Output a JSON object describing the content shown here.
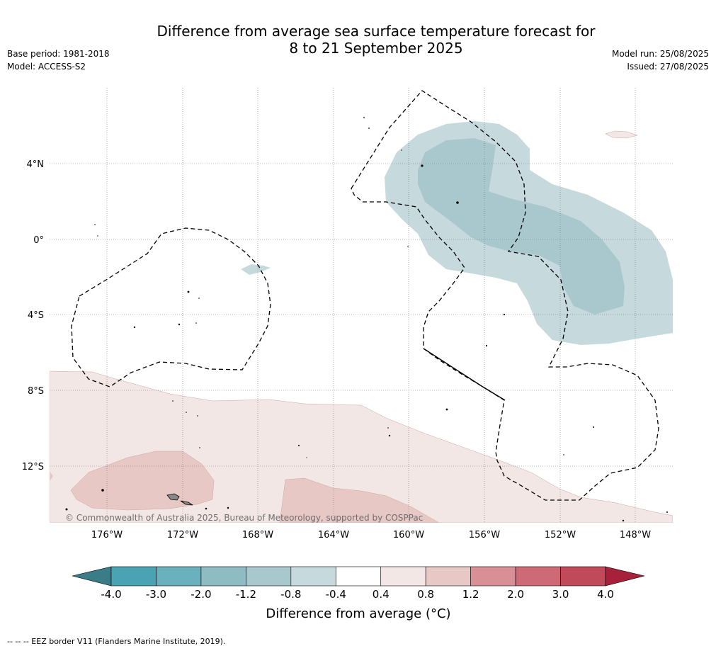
{
  "title_line1": "Difference from average sea surface temperature forecast for",
  "title_line2": "8 to 21 September 2025",
  "meta": {
    "base_period": "Base period: 1981-2018",
    "model": "Model: ACCESS-S2",
    "model_run": "Model run: 25/08/2025",
    "issued": "Issued: 27/08/2025"
  },
  "map": {
    "lat_labels": [
      "4°N",
      "0°",
      "4°S",
      "8°S",
      "12°S"
    ],
    "lon_labels": [
      "176°W",
      "172°W",
      "168°W",
      "164°W",
      "160°W",
      "156°W",
      "152°W",
      "148°W"
    ],
    "copyright": "© Commonwealth of Australia 2025, Bureau of Meteorology, supported by COSPPac",
    "colors": {
      "cool_light": "#c6d9dd",
      "cool_mid": "#a8c8cd",
      "warm_light": "#f3e7e6",
      "warm_mid": "#e8c8c5"
    }
  },
  "colorbar": {
    "ticks": [
      "-4.0",
      "-3.0",
      "-2.0",
      "-1.2",
      "-0.8",
      "-0.4",
      "0.4",
      "0.8",
      "1.2",
      "2.0",
      "3.0",
      "4.0"
    ],
    "colors": [
      "#3a7d88",
      "#4aa3b2",
      "#6ab0bd",
      "#8fbbc2",
      "#a8c8cd",
      "#c6d9dd",
      "#ffffff",
      "#f3e7e6",
      "#e8c8c5",
      "#d88f96",
      "#cd6a75",
      "#c0495a",
      "#a8213a"
    ],
    "title": "Difference from average (°C)"
  },
  "footer": "-- -- -- EEZ border V11 (Flanders Marine Institute, 2019)."
}
